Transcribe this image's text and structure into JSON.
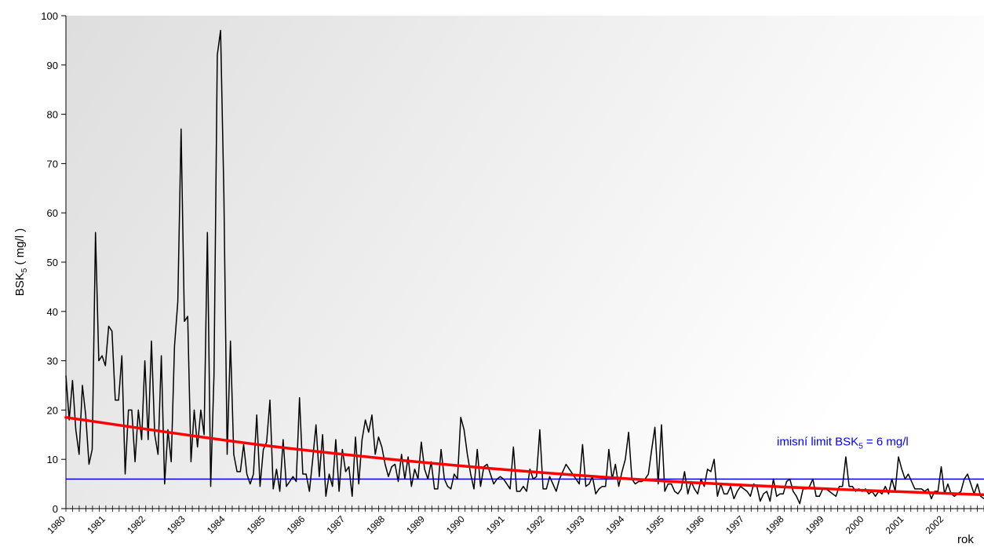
{
  "chart_data": {
    "type": "line",
    "xlabel": "rok",
    "ylabel": {
      "main": "BSK",
      "sub": "5",
      "unit": " ( mg/l )"
    },
    "ylim": [
      0,
      100
    ],
    "xlim": [
      1980,
      2003.0
    ],
    "yticks": [
      0,
      10,
      20,
      30,
      40,
      50,
      60,
      70,
      80,
      90,
      100
    ],
    "xticks": [
      "1980",
      "1981",
      "1982",
      "1983",
      "1984",
      "1985",
      "1986",
      "1987",
      "1988",
      "1989",
      "1990",
      "1991",
      "1992",
      "1993",
      "1994",
      "1995",
      "1996",
      "1997",
      "1998",
      "1999",
      "2000",
      "2001",
      "2002"
    ],
    "grid": false,
    "x_start": 1980,
    "values": [
      27,
      18,
      26,
      16,
      11,
      25,
      19,
      9,
      12,
      56,
      30,
      31,
      29,
      37,
      36,
      22,
      22,
      31,
      7,
      20,
      20,
      9.5,
      20,
      14,
      30,
      14,
      34,
      15,
      11,
      31,
      5,
      16,
      9.5,
      33,
      42,
      77,
      38,
      39,
      9.5,
      20,
      12.5,
      20,
      15,
      56,
      4.5,
      27,
      92,
      97,
      64,
      11,
      34,
      11,
      7.5,
      7.5,
      13,
      7,
      5,
      7,
      19,
      4.5,
      12,
      13.5,
      22,
      4,
      8,
      3.5,
      14,
      4.5,
      5.5,
      6.5,
      5.5,
      22.5,
      7,
      7,
      3.5,
      10,
      17,
      6.5,
      15,
      2.5,
      7,
      4.5,
      14,
      3.5,
      12,
      7.5,
      8.5,
      2.5,
      14.5,
      5,
      14,
      18,
      15.5,
      19,
      11,
      14.5,
      12.5,
      9,
      6.5,
      8.5,
      9,
      5.5,
      11,
      6,
      10.5,
      4.5,
      8,
      6,
      13.5,
      8,
      6,
      9.5,
      4,
      4,
      12,
      6,
      4.5,
      4,
      7,
      6,
      18.5,
      16,
      11,
      7,
      4,
      12,
      4.5,
      8.5,
      9,
      7,
      5,
      6,
      6.5,
      6,
      5,
      4,
      12.5,
      3.5,
      3.5,
      4.5,
      3.5,
      8,
      6,
      6.5,
      16,
      4,
      4,
      6.5,
      5,
      3.5,
      6,
      7.5,
      9,
      8,
      7,
      6,
      5,
      13,
      4.5,
      5,
      6.5,
      3,
      4,
      4.5,
      4.5,
      12,
      6,
      9,
      4.5,
      7.5,
      10,
      15.5,
      6,
      5,
      5.5,
      5.5,
      6,
      7,
      12,
      16.5,
      5,
      17,
      3.5,
      5,
      5,
      3.5,
      3,
      4,
      7.5,
      3,
      5.5,
      4,
      3,
      6,
      4.5,
      8,
      7.5,
      10,
      2.5,
      5,
      3,
      3,
      4.5,
      2,
      3.5,
      4.5,
      4,
      3.5,
      2.5,
      5,
      4.5,
      1.5,
      3,
      3.5,
      1.5,
      6,
      2.5,
      3,
      3,
      5.5,
      6,
      3.5,
      2.5,
      1,
      4,
      4,
      4.5,
      6,
      2.5,
      2.5,
      4,
      4,
      3.5,
      3,
      2.5,
      4.5,
      4.5,
      10.5,
      4.5,
      4.5,
      3.5,
      4,
      3.5,
      4,
      3,
      3.5,
      2.5,
      3.5,
      3,
      4.5,
      3,
      6,
      3.5,
      10.5,
      8,
      6,
      7,
      5.5,
      4,
      4,
      4,
      3.5,
      4,
      2,
      3.5,
      3.5,
      8.5,
      3,
      5,
      3,
      2.5,
      3,
      3.5,
      6,
      7,
      5,
      3,
      5,
      2.5,
      2
    ],
    "trend": {
      "name": "trend",
      "color": "#ff0000",
      "x": [
        1980,
        1985,
        1990,
        1995,
        2000,
        2003
      ],
      "y": [
        18.5,
        12.8,
        8.6,
        5.6,
        3.7,
        2.8
      ]
    },
    "limit": {
      "value": 6,
      "color": "#0000ff",
      "label": {
        "main": "imisní limit  BSK",
        "sub": "5",
        "rest": " = 6 mg/l"
      }
    },
    "series_color": "#000000"
  }
}
